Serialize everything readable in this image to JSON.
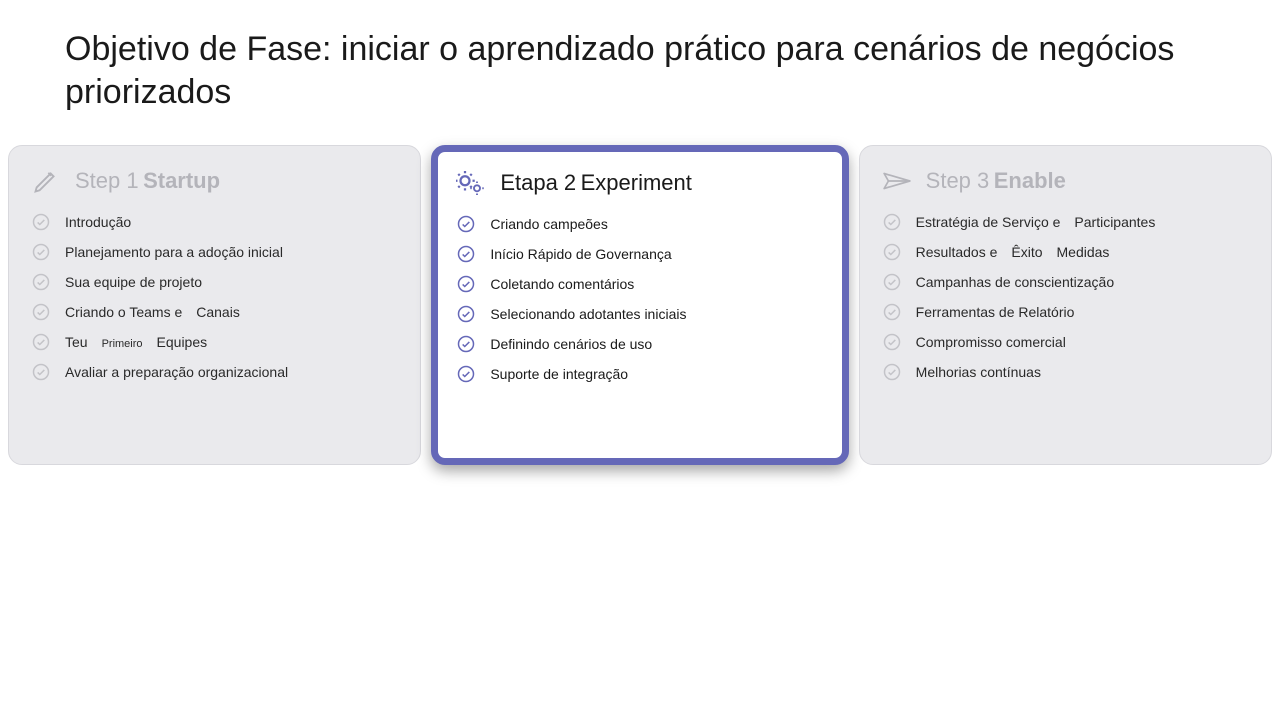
{
  "title": "Objetivo de Fase: iniciar o aprendizado prático para cenários de negócios priorizados",
  "colors": {
    "accent": "#6568b8",
    "inactive_card_bg": "#eaeaed",
    "inactive_card_border": "#d8d8dd",
    "active_card_bg": "#ffffff",
    "inactive_text": "#b4b4ba",
    "body_text": "#2a2a2a",
    "check_inactive": "#c3c3c8",
    "check_active": "#6568b8"
  },
  "cards": [
    {
      "state": "inactive",
      "icon": "pencil",
      "step_label": "Step 1",
      "step_name": "Startup",
      "items": [
        [
          "Introdução"
        ],
        [
          "Planejamento para a adoção inicial"
        ],
        [
          "Sua equipe de projeto"
        ],
        [
          "Criando o Teams e",
          "Canais"
        ],
        [
          "Teu",
          "Primeiro",
          "Equipes"
        ],
        [
          "Avaliar a preparação organizacional"
        ]
      ]
    },
    {
      "state": "active",
      "icon": "gears",
      "step_label": "Etapa 2",
      "step_name": "Experiment",
      "items": [
        [
          "Criando campeões"
        ],
        [
          "Início Rápido de Governança"
        ],
        [
          "Coletando comentários"
        ],
        [
          "Selecionando adotantes iniciais"
        ],
        [
          "Definindo cenários de uso"
        ],
        [
          "Suporte de integração"
        ]
      ]
    },
    {
      "state": "inactive",
      "icon": "paperplane",
      "step_label": "Step 3",
      "step_name": "Enable",
      "items": [
        [
          "Estratégia de Serviço e",
          "Participantes"
        ],
        [
          "Resultados e",
          "Êxito",
          "Medidas"
        ],
        [
          "Campanhas de conscientização"
        ],
        [
          "Ferramentas de Relatório"
        ],
        [
          "Compromisso comercial"
        ],
        [
          "Melhorias contínuas"
        ]
      ]
    }
  ]
}
